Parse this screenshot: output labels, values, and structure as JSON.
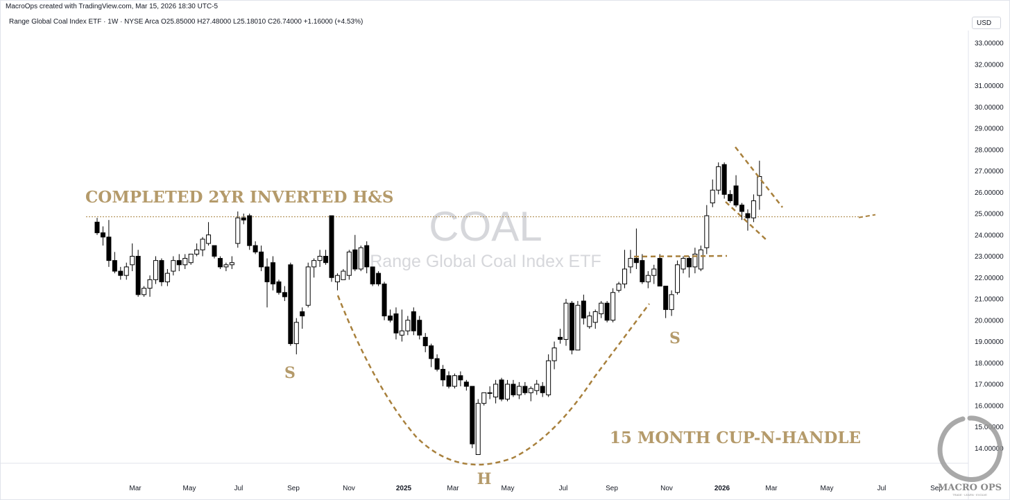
{
  "header": {
    "attribution": "MacroOps created with TradingView.com, Mar 15, 2026 18:30 UTC-5"
  },
  "legend": {
    "text": "Range Global Coal Index ETF · 1W · NYSE Arca  O25.85000  H27.48000  L25.18010  C26.74000  +1.16000 (+4.53%)"
  },
  "currency": "USD",
  "watermark": {
    "symbol": "COAL",
    "name": "Range Global Coal Index ETF"
  },
  "annotations": {
    "pattern_title": "COMPLETED 2YR INVERTED H&S",
    "left_shoulder": "S",
    "head": "H",
    "right_shoulder": "S",
    "cup_label": "15 MONTH CUP-N-HANDLE",
    "line_color": "#a8803c"
  },
  "logo": {
    "name": "MACRO OPS",
    "tagline": "TRADE · LEARN · EVOLVE",
    "icon": "enso-circle-icon"
  },
  "chart_data": {
    "type": "candlestick",
    "interval": "1W",
    "ylim": [
      13.5,
      33.5
    ],
    "yticks": [
      "33.00000",
      "32.00000",
      "31.00000",
      "30.00000",
      "29.00000",
      "28.00000",
      "27.00000",
      "26.00000",
      "25.00000",
      "24.00000",
      "23.00000",
      "22.00000",
      "21.00000",
      "20.00000",
      "19.00000",
      "18.00000",
      "17.00000",
      "16.00000",
      "15.00000",
      "14.00000"
    ],
    "xticks": [
      {
        "label": "Mar",
        "bold": false
      },
      {
        "label": "May",
        "bold": false
      },
      {
        "label": "Jul",
        "bold": false
      },
      {
        "label": "Sep",
        "bold": false
      },
      {
        "label": "Nov",
        "bold": false
      },
      {
        "label": "2025",
        "bold": true
      },
      {
        "label": "Mar",
        "bold": false
      },
      {
        "label": "May",
        "bold": false
      },
      {
        "label": "Jul",
        "bold": false
      },
      {
        "label": "Sep",
        "bold": false
      },
      {
        "label": "Nov",
        "bold": false
      },
      {
        "label": "2026",
        "bold": true
      },
      {
        "label": "Mar",
        "bold": false
      },
      {
        "label": "May",
        "bold": false
      },
      {
        "label": "Jul",
        "bold": false
      },
      {
        "label": "Sep",
        "bold": false
      }
    ],
    "neckline_level": 24.85,
    "ohlc": [
      [
        24.6,
        24.8,
        24.0,
        24.1
      ],
      [
        24.1,
        24.4,
        23.5,
        23.9
      ],
      [
        23.9,
        24.7,
        22.5,
        22.8
      ],
      [
        22.8,
        23.2,
        22.2,
        22.3
      ],
      [
        22.3,
        22.5,
        21.9,
        22.1
      ],
      [
        22.1,
        22.7,
        21.9,
        22.5
      ],
      [
        22.6,
        23.6,
        22.3,
        23.0
      ],
      [
        23.0,
        23.3,
        21.1,
        21.2
      ],
      [
        21.2,
        21.6,
        21.1,
        21.5
      ],
      [
        21.5,
        22.1,
        21.1,
        21.9
      ],
      [
        21.9,
        23.0,
        21.7,
        22.8
      ],
      [
        22.8,
        22.9,
        21.6,
        21.8
      ],
      [
        21.8,
        22.4,
        21.6,
        22.2
      ],
      [
        22.3,
        23.0,
        22.1,
        22.8
      ],
      [
        22.8,
        23.1,
        22.3,
        22.6
      ],
      [
        22.6,
        23.1,
        22.4,
        22.9
      ],
      [
        22.7,
        23.0,
        22.6,
        23.1
      ],
      [
        23.1,
        23.6,
        23.0,
        23.3
      ],
      [
        23.3,
        23.9,
        23.0,
        23.8
      ],
      [
        23.6,
        24.6,
        23.5,
        24.0
      ],
      [
        23.5,
        23.5,
        22.9,
        23.0
      ],
      [
        22.9,
        23.0,
        22.4,
        22.5
      ],
      [
        22.5,
        22.7,
        22.3,
        22.6
      ],
      [
        22.6,
        23.0,
        22.4,
        22.7
      ],
      [
        23.6,
        25.1,
        23.4,
        24.8
      ],
      [
        24.8,
        25.0,
        24.5,
        24.7
      ],
      [
        24.9,
        25.0,
        23.3,
        23.5
      ],
      [
        23.5,
        23.7,
        23.1,
        23.2
      ],
      [
        23.2,
        23.5,
        22.3,
        22.5
      ],
      [
        22.5,
        22.9,
        20.6,
        21.8
      ],
      [
        22.7,
        23.0,
        21.4,
        21.7
      ],
      [
        21.8,
        21.9,
        21.2,
        21.3
      ],
      [
        21.3,
        21.6,
        20.9,
        21.1
      ],
      [
        22.6,
        22.7,
        18.8,
        18.9
      ],
      [
        18.9,
        20.1,
        18.4,
        19.9
      ],
      [
        20.4,
        20.6,
        19.6,
        20.2
      ],
      [
        20.7,
        22.7,
        20.6,
        22.5
      ],
      [
        22.5,
        22.9,
        22.0,
        22.8
      ],
      [
        22.8,
        23.3,
        22.5,
        23.0
      ],
      [
        23.0,
        23.3,
        22.6,
        22.7
      ],
      [
        24.9,
        24.9,
        21.8,
        22.0
      ],
      [
        21.8,
        22.2,
        21.4,
        22.1
      ],
      [
        21.9,
        22.4,
        21.9,
        22.3
      ],
      [
        22.1,
        23.3,
        21.9,
        23.2
      ],
      [
        23.3,
        24.0,
        22.3,
        22.4
      ],
      [
        22.4,
        23.5,
        22.3,
        23.4
      ],
      [
        23.5,
        23.7,
        22.2,
        22.5
      ],
      [
        22.5,
        22.5,
        21.6,
        21.7
      ],
      [
        22.2,
        22.3,
        21.6,
        21.7
      ],
      [
        21.7,
        21.8,
        20.0,
        20.2
      ],
      [
        20.2,
        20.5,
        19.9,
        20.0
      ],
      [
        20.3,
        20.6,
        19.1,
        19.4
      ],
      [
        19.3,
        20.5,
        19.0,
        19.5
      ],
      [
        19.5,
        20.2,
        19.3,
        20.0
      ],
      [
        20.4,
        20.6,
        19.3,
        19.5
      ],
      [
        20.0,
        20.2,
        19.1,
        19.3
      ],
      [
        19.2,
        19.4,
        18.5,
        18.8
      ],
      [
        18.8,
        18.9,
        17.8,
        18.2
      ],
      [
        18.2,
        18.4,
        17.6,
        17.7
      ],
      [
        17.7,
        17.9,
        16.9,
        17.2
      ],
      [
        17.4,
        17.6,
        16.8,
        16.9
      ],
      [
        16.9,
        17.5,
        16.8,
        17.4
      ],
      [
        17.4,
        17.6,
        16.9,
        17.2
      ],
      [
        17.1,
        17.2,
        16.7,
        16.9
      ],
      [
        16.9,
        16.9,
        14.0,
        14.2
      ],
      [
        13.7,
        16.3,
        13.7,
        16.1
      ],
      [
        16.1,
        16.6,
        16.0,
        16.6
      ],
      [
        16.6,
        16.9,
        16.3,
        16.6
      ],
      [
        16.4,
        17.2,
        16.1,
        17.0
      ],
      [
        17.2,
        17.3,
        16.2,
        16.3
      ],
      [
        16.3,
        17.2,
        16.2,
        17.0
      ],
      [
        17.0,
        17.2,
        16.4,
        16.5
      ],
      [
        16.5,
        17.1,
        16.3,
        16.9
      ],
      [
        16.9,
        17.1,
        16.5,
        16.6
      ],
      [
        16.6,
        16.9,
        16.2,
        16.8
      ],
      [
        16.7,
        17.2,
        16.5,
        17.0
      ],
      [
        16.9,
        17.1,
        16.4,
        16.6
      ],
      [
        16.5,
        18.4,
        16.4,
        18.1
      ],
      [
        18.1,
        19.0,
        17.7,
        18.7
      ],
      [
        19.2,
        19.6,
        18.9,
        19.1
      ],
      [
        19.1,
        21.0,
        18.8,
        20.8
      ],
      [
        20.8,
        20.9,
        18.4,
        18.6
      ],
      [
        18.6,
        20.9,
        18.6,
        20.7
      ],
      [
        20.9,
        21.2,
        19.8,
        20.1
      ],
      [
        19.7,
        20.4,
        19.6,
        20.2
      ],
      [
        19.9,
        20.5,
        19.6,
        20.4
      ],
      [
        20.3,
        20.9,
        20.1,
        20.8
      ],
      [
        20.8,
        20.9,
        19.9,
        20.0
      ],
      [
        20.0,
        21.5,
        19.9,
        21.3
      ],
      [
        21.4,
        21.8,
        21.3,
        21.7
      ],
      [
        21.7,
        23.3,
        21.5,
        22.4
      ],
      [
        22.5,
        23.3,
        22.2,
        22.9
      ],
      [
        22.9,
        24.3,
        22.4,
        22.7
      ],
      [
        22.8,
        23.1,
        21.7,
        21.8
      ],
      [
        21.8,
        22.3,
        21.5,
        22.1
      ],
      [
        22.1,
        22.6,
        21.7,
        22.4
      ],
      [
        22.9,
        23.1,
        21.6,
        21.6
      ],
      [
        21.6,
        21.6,
        20.1,
        20.5
      ],
      [
        20.5,
        21.4,
        20.2,
        21.2
      ],
      [
        21.3,
        22.8,
        21.2,
        22.6
      ],
      [
        22.4,
        23.0,
        22.2,
        22.9
      ],
      [
        22.9,
        23.0,
        22.0,
        22.5
      ],
      [
        22.5,
        23.4,
        22.2,
        23.1
      ],
      [
        22.4,
        23.5,
        22.3,
        23.3
      ],
      [
        23.4,
        25.4,
        23.1,
        24.9
      ],
      [
        25.5,
        26.6,
        25.3,
        26.1
      ],
      [
        26.1,
        27.4,
        25.9,
        27.2
      ],
      [
        27.3,
        27.4,
        25.7,
        25.9
      ],
      [
        25.9,
        26.1,
        25.5,
        25.6
      ],
      [
        26.3,
        26.8,
        25.3,
        25.4
      ],
      [
        25.4,
        25.5,
        24.7,
        25.1
      ],
      [
        25.0,
        25.2,
        24.2,
        24.8
      ],
      [
        24.8,
        25.9,
        24.6,
        25.6
      ],
      [
        25.85,
        27.48,
        25.18,
        26.74
      ]
    ]
  }
}
